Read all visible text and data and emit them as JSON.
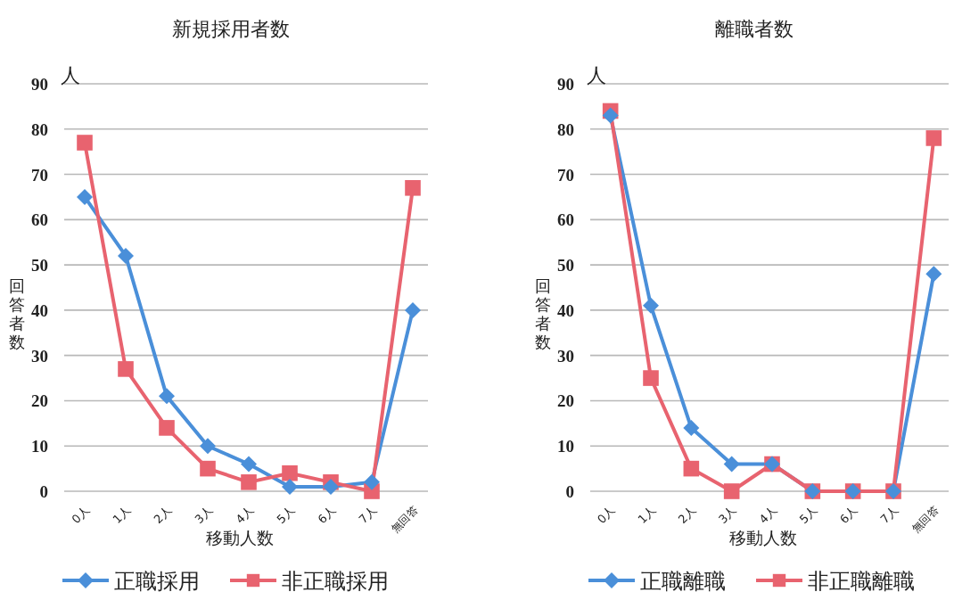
{
  "chart_data": [
    {
      "type": "line",
      "title": "新規採用者数",
      "xlabel": "移動人数",
      "ylabel": "回答者数",
      "annotations": [
        "人"
      ],
      "categories": [
        "0人",
        "1人",
        "2人",
        "3人",
        "4人",
        "5人",
        "6人",
        "7人",
        "無回答"
      ],
      "series": [
        {
          "name": "正職採用",
          "color": "#4a8fd9",
          "marker": "diamond",
          "values": [
            65,
            52,
            21,
            10,
            6,
            1,
            1,
            2,
            40
          ]
        },
        {
          "name": "非正職採用",
          "color": "#e8636f",
          "marker": "square",
          "values": [
            77,
            27,
            14,
            5,
            2,
            4,
            2,
            0,
            67
          ]
        }
      ],
      "ylim": [
        0,
        90
      ],
      "yticks": [
        0,
        10,
        20,
        30,
        40,
        50,
        60,
        70,
        80,
        90
      ],
      "grid": "y",
      "legend": "bottom"
    },
    {
      "type": "line",
      "title": "離職者数",
      "xlabel": "移動人数",
      "ylabel": "回答者数",
      "annotations": [
        "人"
      ],
      "categories": [
        "0人",
        "1人",
        "2人",
        "3人",
        "4人",
        "5人",
        "6人",
        "7人",
        "無回答"
      ],
      "series": [
        {
          "name": "正職離職",
          "color": "#4a8fd9",
          "marker": "diamond",
          "values": [
            83,
            41,
            14,
            6,
            6,
            0,
            0,
            0,
            48
          ]
        },
        {
          "name": "非正職離職",
          "color": "#e8636f",
          "marker": "square",
          "values": [
            84,
            25,
            5,
            0,
            6,
            0,
            0,
            0,
            78
          ]
        }
      ],
      "ylim": [
        0,
        90
      ],
      "yticks": [
        0,
        10,
        20,
        30,
        40,
        50,
        60,
        70,
        80,
        90
      ],
      "grid": "y",
      "legend": "bottom"
    }
  ]
}
